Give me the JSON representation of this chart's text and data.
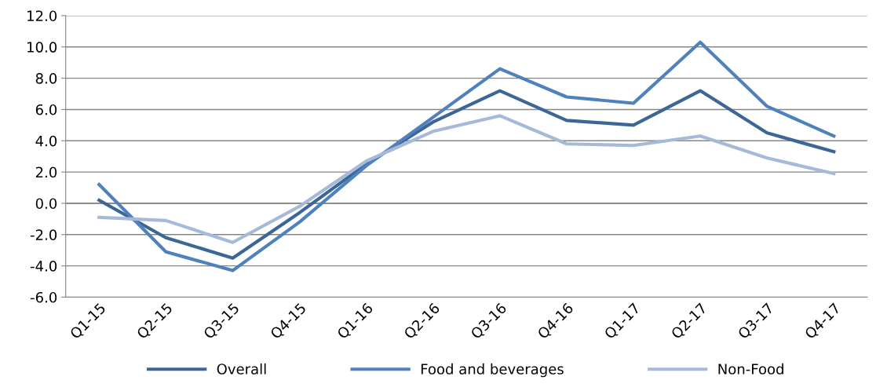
{
  "chart_data": {
    "type": "line",
    "categories": [
      "Q1-15",
      "Q2-15",
      "Q3-15",
      "Q4-15",
      "Q1-16",
      "Q2-16",
      "Q3-16",
      "Q4-16",
      "Q1-17",
      "Q2-17",
      "Q3-17",
      "Q4-17"
    ],
    "series": [
      {
        "name": "Overall",
        "color": "#3b6696",
        "values": [
          0.2,
          -2.2,
          -3.5,
          -0.6,
          2.5,
          5.2,
          7.2,
          5.3,
          5.0,
          7.2,
          4.5,
          3.3
        ]
      },
      {
        "name": "Food and beverages",
        "color": "#4f81bd",
        "values": [
          1.2,
          -3.1,
          -4.3,
          -1.2,
          2.4,
          5.5,
          8.6,
          6.8,
          6.4,
          10.3,
          6.2,
          4.3
        ]
      },
      {
        "name": "Non-Food",
        "color": "#a7b9d9",
        "values": [
          -0.9,
          -1.1,
          -2.5,
          -0.2,
          2.7,
          4.6,
          5.6,
          3.8,
          3.7,
          4.3,
          2.9,
          1.9
        ]
      }
    ],
    "ylim": [
      -6,
      12
    ],
    "yticks": [
      {
        "value": -6,
        "label": "-6.0"
      },
      {
        "value": -4,
        "label": "-4.0"
      },
      {
        "value": -2,
        "label": "-2.0"
      },
      {
        "value": 0,
        "label": "0.0"
      },
      {
        "value": 2,
        "label": "2.0"
      },
      {
        "value": 4,
        "label": "4.0"
      },
      {
        "value": 6,
        "label": "6.0"
      },
      {
        "value": 8,
        "label": "8.0"
      },
      {
        "value": 10,
        "label": "10.0"
      },
      {
        "value": 12,
        "label": "12.0"
      }
    ],
    "grid": "y",
    "legend": "bottom",
    "marker": "none",
    "line_style": "solid"
  }
}
